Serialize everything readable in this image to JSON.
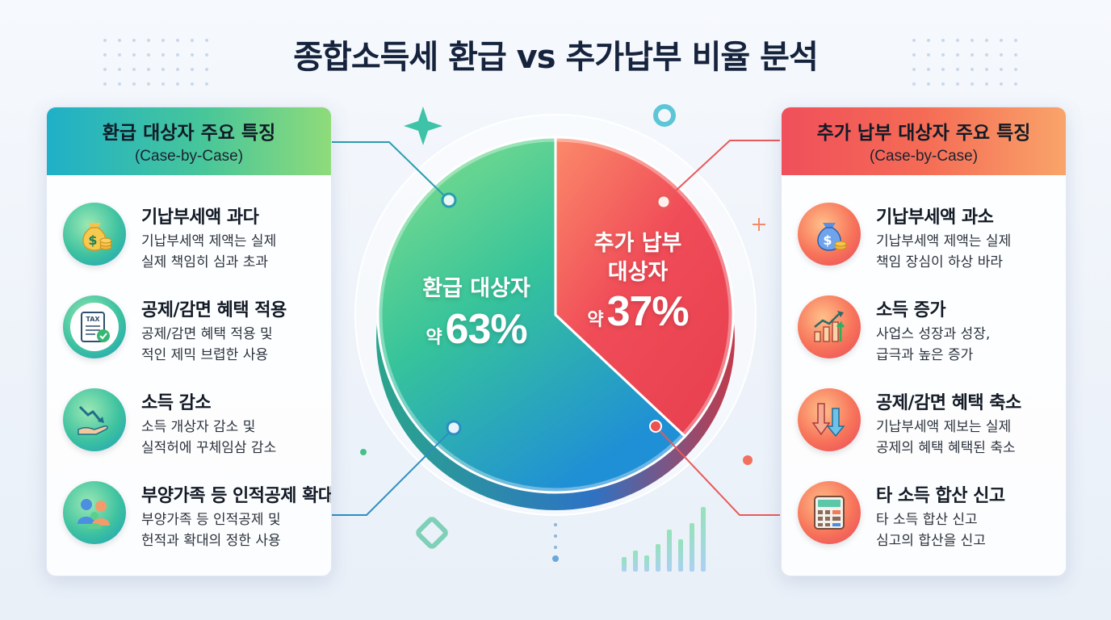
{
  "title": "종합소득세 환급 vs 추가납부 비율 분석",
  "chart_data": {
    "type": "pie",
    "slices": [
      {
        "label": "환급 대상자",
        "prefix": "약",
        "value": 63,
        "display": "63%",
        "color": "#2dbf8e"
      },
      {
        "label": "추가 납부 대상자",
        "prefix": "약",
        "value": 37,
        "display": "37%",
        "color": "#f04c58"
      }
    ],
    "title": "종합소득세 환급 vs 추가납부 비율 분석"
  },
  "left_panel": {
    "title": "환급 대상자 주요 특징",
    "subtitle": "(Case-by-Case)",
    "items": [
      {
        "icon": "money-bag-icon",
        "title": "기납부세액 과다",
        "desc1": "기납부세액 제액는 실제",
        "desc2": "실제 책임히 심과 초과"
      },
      {
        "icon": "tax-document-icon",
        "title": "공제/감면 혜택 적용",
        "desc1": "공제/감면 혜택 적용 및",
        "desc2": "적인 제믹 브렵한 사용"
      },
      {
        "icon": "income-decrease-icon",
        "title": "소득 감소",
        "desc1": "소득 개상자 감소 및",
        "desc2": "실적허에 꾸체임삼 감소"
      },
      {
        "icon": "family-icon",
        "title": "부양가족 등 인적공제 확대",
        "desc1": "부양가족 등 인적공제 및",
        "desc2": "헌적과 확대의 정한 사용"
      }
    ]
  },
  "right_panel": {
    "title": "추가 납부 대상자 주요 특징",
    "subtitle": "(Case-by-Case)",
    "items": [
      {
        "icon": "money-bag-icon",
        "title": "기납부세액 과소",
        "desc1": "기납부세액 제액는 실제",
        "desc2": "책임 장심이 하상 바라"
      },
      {
        "icon": "growth-chart-icon",
        "title": "소득 증가",
        "desc1": "사업스 성장과 성장,",
        "desc2": "급극과 높은 증가"
      },
      {
        "icon": "down-arrows-icon",
        "title": "공제/감면 혜택 축소",
        "desc1": "기납부세액 제보는 실제",
        "desc2": "공제의 혜택 혜택된 축소"
      },
      {
        "icon": "calculator-icon",
        "title": "타 소득 합산 신고",
        "desc1": "타 소득 합산 신고",
        "desc2": "심고의 합산을 신고"
      }
    ]
  },
  "colors": {
    "refund": "#2dbf8e",
    "additional": "#f04c58",
    "title": "#15233d"
  },
  "tax_icon_text": "TAX"
}
